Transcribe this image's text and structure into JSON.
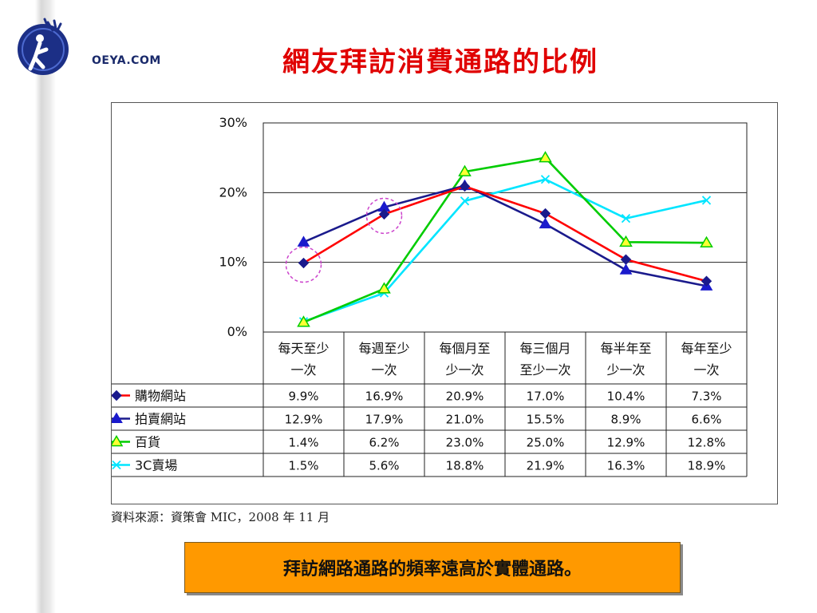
{
  "logo": {
    "text": "OEYA.COM"
  },
  "slide": {
    "title": "網友拜訪消費通路的比例",
    "source": "資料來源：資策會 MIC，2008 年 11 月",
    "callout": "拜訪網路通路的頻率遠高於實體通路。"
  },
  "chart_data": {
    "type": "line",
    "categories": [
      [
        "每天至少",
        "一次"
      ],
      [
        "每週至少",
        "一次"
      ],
      [
        "每個月至",
        "少一次"
      ],
      [
        "每三個月",
        "至少一次"
      ],
      [
        "每半年至",
        "少一次"
      ],
      [
        "每年至少",
        "一次"
      ]
    ],
    "ylim": [
      0,
      30
    ],
    "yticks": [
      "0%",
      "10%",
      "20%",
      "30%"
    ],
    "grid": true,
    "series": [
      {
        "name": "購物網站",
        "color": "#ff0000",
        "marker": "diamond",
        "marker_color": "#1a1a8c",
        "values": [
          9.9,
          16.9,
          20.9,
          17.0,
          10.4,
          7.3
        ],
        "labels": [
          "9.9%",
          "16.9%",
          "20.9%",
          "17.0%",
          "10.4%",
          "7.3%"
        ]
      },
      {
        "name": "拍賣網站",
        "color": "#1a1a8c",
        "marker": "triangle",
        "marker_color": "#1a1acc",
        "values": [
          12.9,
          17.9,
          21.0,
          15.5,
          8.9,
          6.6
        ],
        "labels": [
          "12.9%",
          "17.9%",
          "21.0%",
          "15.5%",
          "8.9%",
          "6.6%"
        ]
      },
      {
        "name": "百貨",
        "color": "#00cc00",
        "marker": "triangle-open",
        "marker_color": "#ffff33",
        "values": [
          1.4,
          6.2,
          23.0,
          25.0,
          12.9,
          12.8
        ],
        "labels": [
          "1.4%",
          "6.2%",
          "23.0%",
          "25.0%",
          "12.9%",
          "12.8%"
        ]
      },
      {
        "name": "3C賣場",
        "color": "#00e5ff",
        "marker": "x",
        "marker_color": "#00e5ff",
        "values": [
          1.5,
          5.6,
          18.8,
          21.9,
          16.3,
          18.9
        ],
        "labels": [
          "1.5%",
          "5.6%",
          "18.8%",
          "21.9%",
          "16.3%",
          "18.9%"
        ]
      }
    ],
    "highlighted_points": [
      {
        "series": 0,
        "index": 0
      },
      {
        "series": 0,
        "index": 1
      }
    ]
  }
}
